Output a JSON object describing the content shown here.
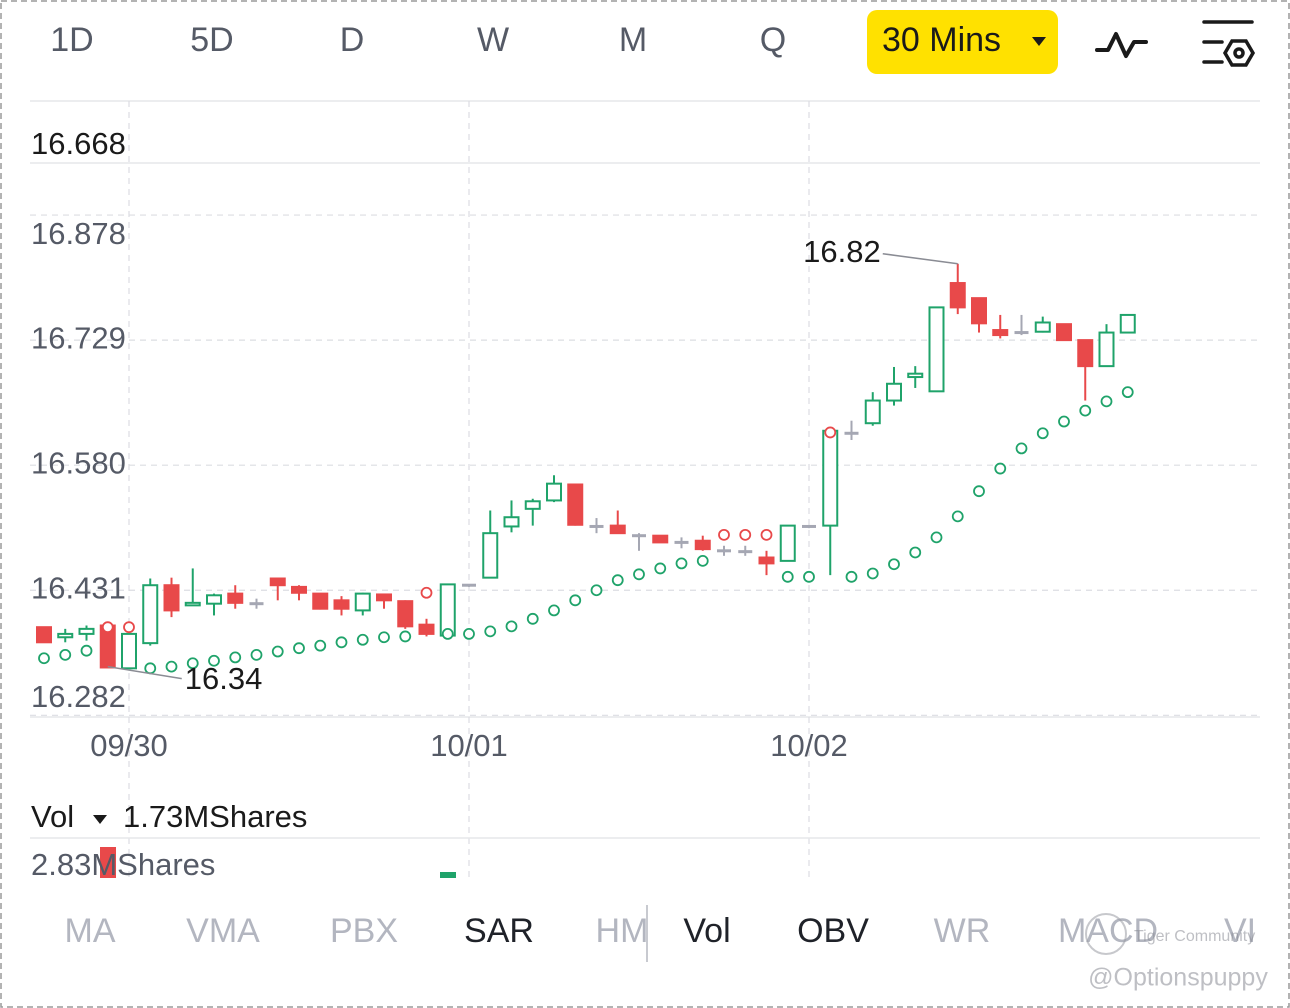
{
  "top_tabs": [
    "1D",
    "5D",
    "D",
    "W",
    "M",
    "Q"
  ],
  "interval": "30 Mins",
  "chart_data": {
    "type": "candlestick",
    "categories": [
      null,
      null,
      null,
      null,
      "09/30",
      null,
      null,
      null,
      null,
      null,
      null,
      null,
      null,
      null,
      null,
      null,
      null,
      null,
      null,
      null,
      "10/01",
      null,
      null,
      null,
      null,
      null,
      null,
      null,
      null,
      null,
      null,
      null,
      null,
      null,
      null,
      null,
      "10/02",
      null,
      null,
      null,
      null,
      null,
      null,
      null,
      null,
      null,
      null,
      null,
      null,
      null,
      null,
      null
    ],
    "open": [
      16.387,
      16.375,
      16.379,
      16.389,
      16.338,
      16.368,
      16.437,
      16.413,
      16.415,
      16.427,
      16.415,
      16.445,
      16.435,
      16.427,
      16.419,
      16.407,
      16.426,
      16.418,
      16.39,
      16.377,
      16.437,
      16.446,
      16.507,
      16.528,
      16.538,
      16.557,
      16.507,
      16.508,
      16.496,
      16.496,
      16.488,
      16.49,
      16.478,
      16.477,
      16.47,
      16.466,
      16.507,
      16.508,
      16.618,
      16.63,
      16.657,
      16.685,
      16.668,
      16.797,
      16.779,
      16.741,
      16.738,
      16.739,
      16.748,
      16.729,
      16.698,
      16.738
    ],
    "high": [
      16.387,
      16.385,
      16.389,
      16.393,
      16.383,
      16.445,
      16.446,
      16.457,
      16.427,
      16.437,
      16.421,
      16.446,
      16.437,
      16.427,
      16.424,
      16.428,
      16.426,
      16.419,
      16.397,
      16.439,
      16.438,
      16.526,
      16.538,
      16.54,
      16.568,
      16.557,
      16.517,
      16.526,
      16.499,
      16.496,
      16.494,
      16.496,
      16.484,
      16.484,
      16.478,
      16.508,
      16.507,
      16.624,
      16.633,
      16.667,
      16.697,
      16.698,
      16.769,
      16.82,
      16.779,
      16.759,
      16.759,
      16.757,
      16.748,
      16.729,
      16.748,
      16.759
    ],
    "low": [
      16.369,
      16.369,
      16.371,
      16.34,
      16.342,
      16.365,
      16.399,
      16.413,
      16.401,
      16.409,
      16.409,
      16.419,
      16.419,
      16.408,
      16.401,
      16.401,
      16.409,
      16.385,
      16.376,
      16.375,
      16.435,
      16.445,
      16.5,
      16.508,
      16.536,
      16.508,
      16.499,
      16.499,
      16.478,
      16.488,
      16.481,
      16.478,
      16.472,
      16.472,
      16.449,
      16.466,
      16.505,
      16.449,
      16.61,
      16.627,
      16.651,
      16.672,
      16.668,
      16.76,
      16.738,
      16.731,
      16.735,
      16.738,
      16.729,
      16.657,
      16.698,
      16.738
    ],
    "close": [
      16.369,
      16.379,
      16.385,
      16.339,
      16.379,
      16.437,
      16.407,
      16.416,
      16.425,
      16.416,
      16.415,
      16.437,
      16.428,
      16.409,
      16.409,
      16.427,
      16.419,
      16.388,
      16.379,
      16.438,
      16.437,
      16.499,
      16.518,
      16.537,
      16.558,
      16.509,
      16.507,
      16.499,
      16.496,
      16.488,
      16.488,
      16.48,
      16.478,
      16.477,
      16.463,
      16.508,
      16.507,
      16.621,
      16.618,
      16.657,
      16.677,
      16.689,
      16.768,
      16.768,
      16.749,
      16.735,
      16.738,
      16.75,
      16.729,
      16.698,
      16.738,
      16.759
    ],
    "sar": [
      16.35,
      16.354,
      16.359,
      16.387,
      16.387,
      16.338,
      16.34,
      16.344,
      16.347,
      16.351,
      16.354,
      16.358,
      16.362,
      16.365,
      16.369,
      16.372,
      16.375,
      16.376,
      16.428,
      16.379,
      16.379,
      16.382,
      16.388,
      16.397,
      16.407,
      16.419,
      16.431,
      16.443,
      16.45,
      16.457,
      16.463,
      16.466,
      16.497,
      16.497,
      16.497,
      16.447,
      16.447,
      16.619,
      16.447,
      16.451,
      16.462,
      16.476,
      16.494,
      16.519,
      16.549,
      16.576,
      16.6,
      16.618,
      16.632,
      16.645,
      16.656,
      16.667
    ],
    "up_color": "#1fa36a",
    "down_color": "#e8494a",
    "flat_color": "#a5a7b3",
    "ylim": [
      16.28,
      16.94
    ],
    "yticks": [
      16.878,
      16.729,
      {
        "value": 16.58,
        "label": "16.580"
      },
      16.431,
      16.282
    ],
    "top_label": 16.668,
    "high_label": 16.82,
    "low_label": 16.34,
    "grid": true
  },
  "volume": {
    "label": "Vol",
    "current": "1.73MShares",
    "max_label": "2.83MShares"
  },
  "bottom_tabs": [
    {
      "label": "MA",
      "active": false
    },
    {
      "label": "VMA",
      "active": false
    },
    {
      "label": "PBX",
      "active": false
    },
    {
      "label": "SAR",
      "active": true
    },
    {
      "label": "HM",
      "active": false
    },
    {
      "label": "Vol",
      "active": true
    },
    {
      "label": "OBV",
      "active": true
    },
    {
      "label": "WR",
      "active": false
    },
    {
      "label": "MACD",
      "active": false
    },
    {
      "label": "VI",
      "active": false
    }
  ],
  "watermark": {
    "brand": "Tiger Community",
    "user": "@Optionspuppy"
  }
}
